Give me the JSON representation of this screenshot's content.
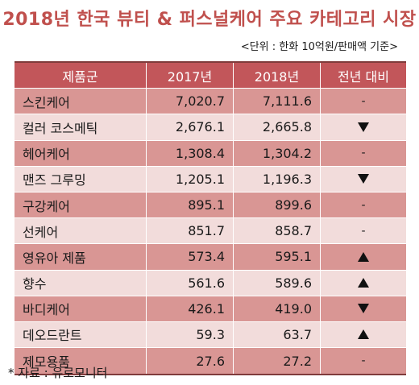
{
  "title": "2018년 한국 뷰티 & 퍼스널케어 주요 카테고리 시장",
  "unit_note": "<단위 : 한화 10억원/판매액 기준>",
  "table": {
    "headers": [
      "제품군",
      "2017년",
      "2018년",
      "전년 대비"
    ],
    "rows": [
      {
        "name": "스킨케어",
        "y2017": "7,020.7",
        "y2018": "7,111.6",
        "change": "-"
      },
      {
        "name": "컬러 코스메틱",
        "y2017": "2,676.1",
        "y2018": "2,665.8",
        "change": "down"
      },
      {
        "name": "헤어케어",
        "y2017": "1,308.4",
        "y2018": "1,304.2",
        "change": "-"
      },
      {
        "name": "맨즈 그루밍",
        "y2017": "1,205.1",
        "y2018": "1,196.3",
        "change": "down"
      },
      {
        "name": "구강케어",
        "y2017": "895.1",
        "y2018": "899.6",
        "change": "-"
      },
      {
        "name": "선케어",
        "y2017": "851.7",
        "y2018": "858.7",
        "change": "-"
      },
      {
        "name": "영유아 제품",
        "y2017": "573.4",
        "y2018": "595.1",
        "change": "up"
      },
      {
        "name": "향수",
        "y2017": "561.6",
        "y2018": "589.6",
        "change": "up"
      },
      {
        "name": "바디케어",
        "y2017": "426.1",
        "y2018": "419.0",
        "change": "down"
      },
      {
        "name": "데오드란트",
        "y2017": "59.3",
        "y2018": "63.7",
        "change": "up"
      },
      {
        "name": "제모용품",
        "y2017": "27.6",
        "y2018": "27.2",
        "change": "-"
      }
    ]
  },
  "source": "* 자료 : 유로모니터",
  "colors": {
    "title": "#c0504d",
    "header_bg": "#c2565a",
    "row_dark": "#d99694",
    "row_light": "#f2dcdb"
  },
  "icons": {
    "up": "triangle-up-icon",
    "down": "triangle-down-icon"
  }
}
